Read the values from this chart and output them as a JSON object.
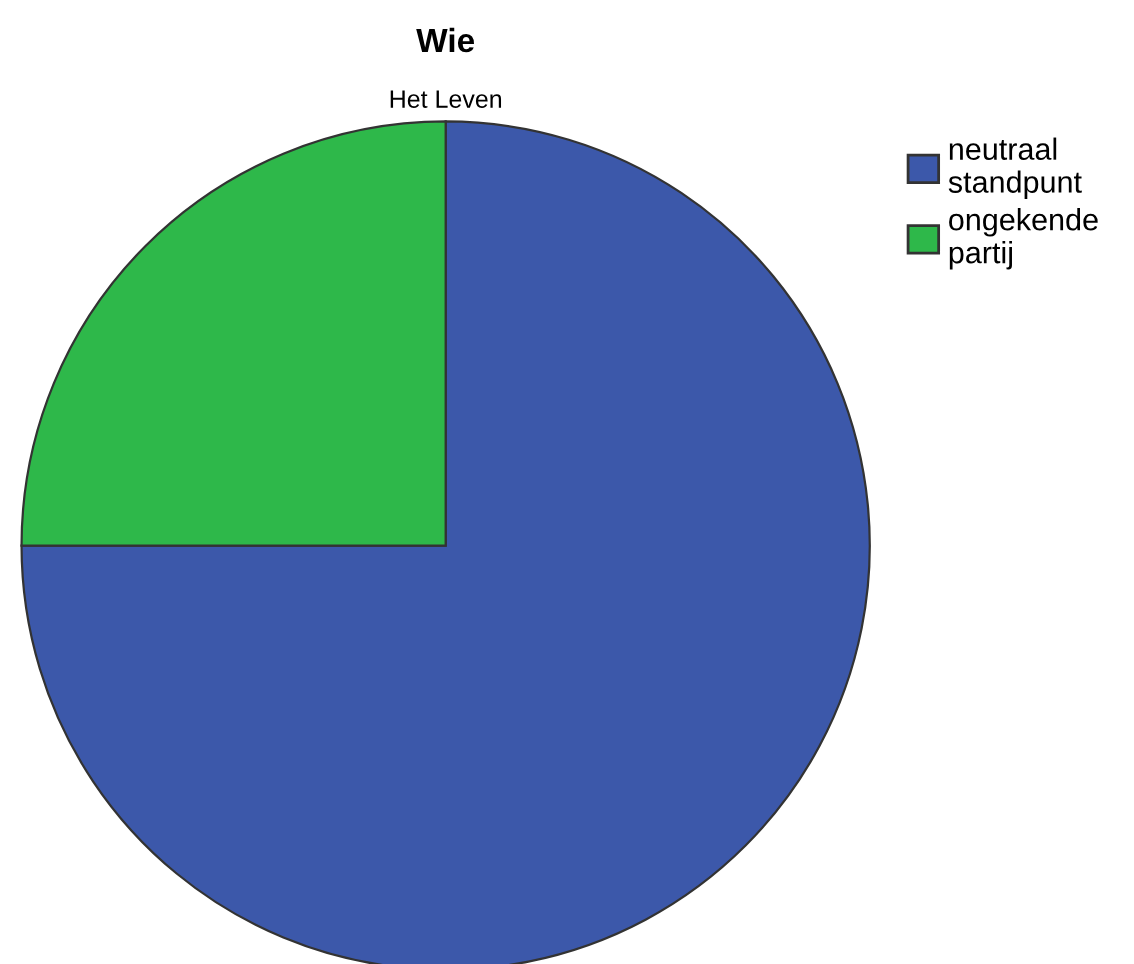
{
  "chart_data": {
    "type": "pie",
    "title": "Wie",
    "subtitle": "Het Leven",
    "categories": [
      "neutraal\nstandpunt",
      "ongekende\npartij"
    ],
    "values": [
      75,
      25
    ],
    "colors": [
      "#3c58aa",
      "#2eb84a"
    ],
    "legend": "top right"
  }
}
